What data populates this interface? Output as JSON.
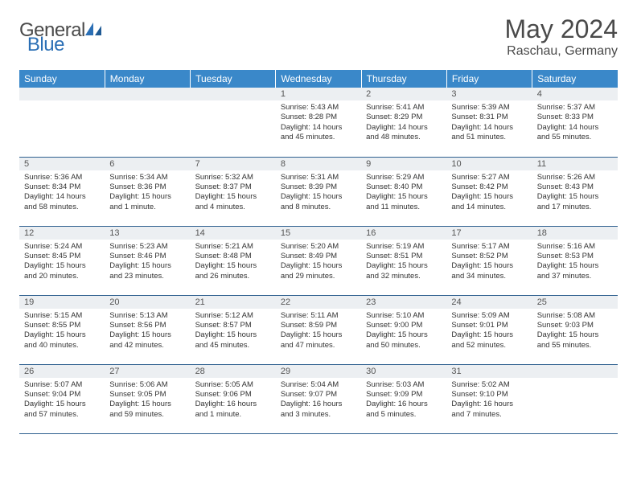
{
  "brand": {
    "word1": "General",
    "word2": "Blue"
  },
  "title": "May 2024",
  "location": "Raschau, Germany",
  "colors": {
    "header_bg": "#3a88c9",
    "header_text": "#ffffff",
    "row_border": "#2e5f8f",
    "daynum_bg": "#eceff2",
    "text": "#333333",
    "brand_gray": "#4a4a4a",
    "brand_blue": "#2b6fb5"
  },
  "weekdays": [
    "Sunday",
    "Monday",
    "Tuesday",
    "Wednesday",
    "Thursday",
    "Friday",
    "Saturday"
  ],
  "weeks": [
    [
      null,
      null,
      null,
      {
        "n": "1",
        "sr": "Sunrise: 5:43 AM",
        "ss": "Sunset: 8:28 PM",
        "d1": "Daylight: 14 hours",
        "d2": "and 45 minutes."
      },
      {
        "n": "2",
        "sr": "Sunrise: 5:41 AM",
        "ss": "Sunset: 8:29 PM",
        "d1": "Daylight: 14 hours",
        "d2": "and 48 minutes."
      },
      {
        "n": "3",
        "sr": "Sunrise: 5:39 AM",
        "ss": "Sunset: 8:31 PM",
        "d1": "Daylight: 14 hours",
        "d2": "and 51 minutes."
      },
      {
        "n": "4",
        "sr": "Sunrise: 5:37 AM",
        "ss": "Sunset: 8:33 PM",
        "d1": "Daylight: 14 hours",
        "d2": "and 55 minutes."
      }
    ],
    [
      {
        "n": "5",
        "sr": "Sunrise: 5:36 AM",
        "ss": "Sunset: 8:34 PM",
        "d1": "Daylight: 14 hours",
        "d2": "and 58 minutes."
      },
      {
        "n": "6",
        "sr": "Sunrise: 5:34 AM",
        "ss": "Sunset: 8:36 PM",
        "d1": "Daylight: 15 hours",
        "d2": "and 1 minute."
      },
      {
        "n": "7",
        "sr": "Sunrise: 5:32 AM",
        "ss": "Sunset: 8:37 PM",
        "d1": "Daylight: 15 hours",
        "d2": "and 4 minutes."
      },
      {
        "n": "8",
        "sr": "Sunrise: 5:31 AM",
        "ss": "Sunset: 8:39 PM",
        "d1": "Daylight: 15 hours",
        "d2": "and 8 minutes."
      },
      {
        "n": "9",
        "sr": "Sunrise: 5:29 AM",
        "ss": "Sunset: 8:40 PM",
        "d1": "Daylight: 15 hours",
        "d2": "and 11 minutes."
      },
      {
        "n": "10",
        "sr": "Sunrise: 5:27 AM",
        "ss": "Sunset: 8:42 PM",
        "d1": "Daylight: 15 hours",
        "d2": "and 14 minutes."
      },
      {
        "n": "11",
        "sr": "Sunrise: 5:26 AM",
        "ss": "Sunset: 8:43 PM",
        "d1": "Daylight: 15 hours",
        "d2": "and 17 minutes."
      }
    ],
    [
      {
        "n": "12",
        "sr": "Sunrise: 5:24 AM",
        "ss": "Sunset: 8:45 PM",
        "d1": "Daylight: 15 hours",
        "d2": "and 20 minutes."
      },
      {
        "n": "13",
        "sr": "Sunrise: 5:23 AM",
        "ss": "Sunset: 8:46 PM",
        "d1": "Daylight: 15 hours",
        "d2": "and 23 minutes."
      },
      {
        "n": "14",
        "sr": "Sunrise: 5:21 AM",
        "ss": "Sunset: 8:48 PM",
        "d1": "Daylight: 15 hours",
        "d2": "and 26 minutes."
      },
      {
        "n": "15",
        "sr": "Sunrise: 5:20 AM",
        "ss": "Sunset: 8:49 PM",
        "d1": "Daylight: 15 hours",
        "d2": "and 29 minutes."
      },
      {
        "n": "16",
        "sr": "Sunrise: 5:19 AM",
        "ss": "Sunset: 8:51 PM",
        "d1": "Daylight: 15 hours",
        "d2": "and 32 minutes."
      },
      {
        "n": "17",
        "sr": "Sunrise: 5:17 AM",
        "ss": "Sunset: 8:52 PM",
        "d1": "Daylight: 15 hours",
        "d2": "and 34 minutes."
      },
      {
        "n": "18",
        "sr": "Sunrise: 5:16 AM",
        "ss": "Sunset: 8:53 PM",
        "d1": "Daylight: 15 hours",
        "d2": "and 37 minutes."
      }
    ],
    [
      {
        "n": "19",
        "sr": "Sunrise: 5:15 AM",
        "ss": "Sunset: 8:55 PM",
        "d1": "Daylight: 15 hours",
        "d2": "and 40 minutes."
      },
      {
        "n": "20",
        "sr": "Sunrise: 5:13 AM",
        "ss": "Sunset: 8:56 PM",
        "d1": "Daylight: 15 hours",
        "d2": "and 42 minutes."
      },
      {
        "n": "21",
        "sr": "Sunrise: 5:12 AM",
        "ss": "Sunset: 8:57 PM",
        "d1": "Daylight: 15 hours",
        "d2": "and 45 minutes."
      },
      {
        "n": "22",
        "sr": "Sunrise: 5:11 AM",
        "ss": "Sunset: 8:59 PM",
        "d1": "Daylight: 15 hours",
        "d2": "and 47 minutes."
      },
      {
        "n": "23",
        "sr": "Sunrise: 5:10 AM",
        "ss": "Sunset: 9:00 PM",
        "d1": "Daylight: 15 hours",
        "d2": "and 50 minutes."
      },
      {
        "n": "24",
        "sr": "Sunrise: 5:09 AM",
        "ss": "Sunset: 9:01 PM",
        "d1": "Daylight: 15 hours",
        "d2": "and 52 minutes."
      },
      {
        "n": "25",
        "sr": "Sunrise: 5:08 AM",
        "ss": "Sunset: 9:03 PM",
        "d1": "Daylight: 15 hours",
        "d2": "and 55 minutes."
      }
    ],
    [
      {
        "n": "26",
        "sr": "Sunrise: 5:07 AM",
        "ss": "Sunset: 9:04 PM",
        "d1": "Daylight: 15 hours",
        "d2": "and 57 minutes."
      },
      {
        "n": "27",
        "sr": "Sunrise: 5:06 AM",
        "ss": "Sunset: 9:05 PM",
        "d1": "Daylight: 15 hours",
        "d2": "and 59 minutes."
      },
      {
        "n": "28",
        "sr": "Sunrise: 5:05 AM",
        "ss": "Sunset: 9:06 PM",
        "d1": "Daylight: 16 hours",
        "d2": "and 1 minute."
      },
      {
        "n": "29",
        "sr": "Sunrise: 5:04 AM",
        "ss": "Sunset: 9:07 PM",
        "d1": "Daylight: 16 hours",
        "d2": "and 3 minutes."
      },
      {
        "n": "30",
        "sr": "Sunrise: 5:03 AM",
        "ss": "Sunset: 9:09 PM",
        "d1": "Daylight: 16 hours",
        "d2": "and 5 minutes."
      },
      {
        "n": "31",
        "sr": "Sunrise: 5:02 AM",
        "ss": "Sunset: 9:10 PM",
        "d1": "Daylight: 16 hours",
        "d2": "and 7 minutes."
      },
      null
    ]
  ]
}
